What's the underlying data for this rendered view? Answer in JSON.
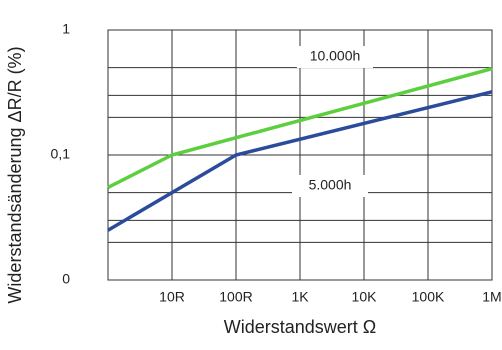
{
  "chart_data": {
    "type": "line",
    "x_label": "Widerstandswert Ω",
    "y_label": "Widerstandsänderung ΔR/R (%)",
    "log_x": true,
    "log_y": true,
    "xlim": [
      1,
      1000000
    ],
    "ylim": [
      0.01,
      1
    ],
    "xticks": [
      {
        "value": 10,
        "label": "10R"
      },
      {
        "value": 100,
        "label": "100R"
      },
      {
        "value": 1000,
        "label": "1K"
      },
      {
        "value": 10000,
        "label": "10K"
      },
      {
        "value": 100000,
        "label": "100K"
      },
      {
        "value": 1000000,
        "label": "1M"
      }
    ],
    "yticks": [
      {
        "value": 0.01,
        "label": "0"
      },
      {
        "value": 0.1,
        "label": "0,1"
      },
      1
    ],
    "y_minor_grid": [
      0.02,
      0.03,
      0.05,
      0.2,
      0.3,
      0.5
    ],
    "grid": true,
    "series": [
      {
        "name": "10.000h",
        "color": "#5ccf3e",
        "x": [
          1,
          10,
          1000000
        ],
        "values": [
          0.055,
          0.1,
          0.49
        ]
      },
      {
        "name": "5.000h",
        "color": "#2b4c9b",
        "x": [
          1,
          100,
          1000000
        ],
        "values": [
          0.025,
          0.1,
          0.32
        ]
      }
    ]
  }
}
